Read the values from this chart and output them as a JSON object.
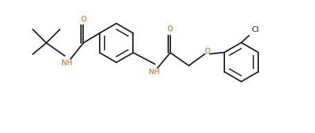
{
  "background_color": "#ffffff",
  "line_color": "#1a1a1a",
  "line_width": 1.4,
  "text_color": "#1a1a1a",
  "nh_color": "#cc6600",
  "o_color": "#cc6600",
  "font_size": 7.5,
  "figsize": [
    4.56,
    1.92
  ],
  "dpi": 100,
  "xlim": [
    0,
    10.0
  ],
  "ylim": [
    0,
    4.2
  ]
}
